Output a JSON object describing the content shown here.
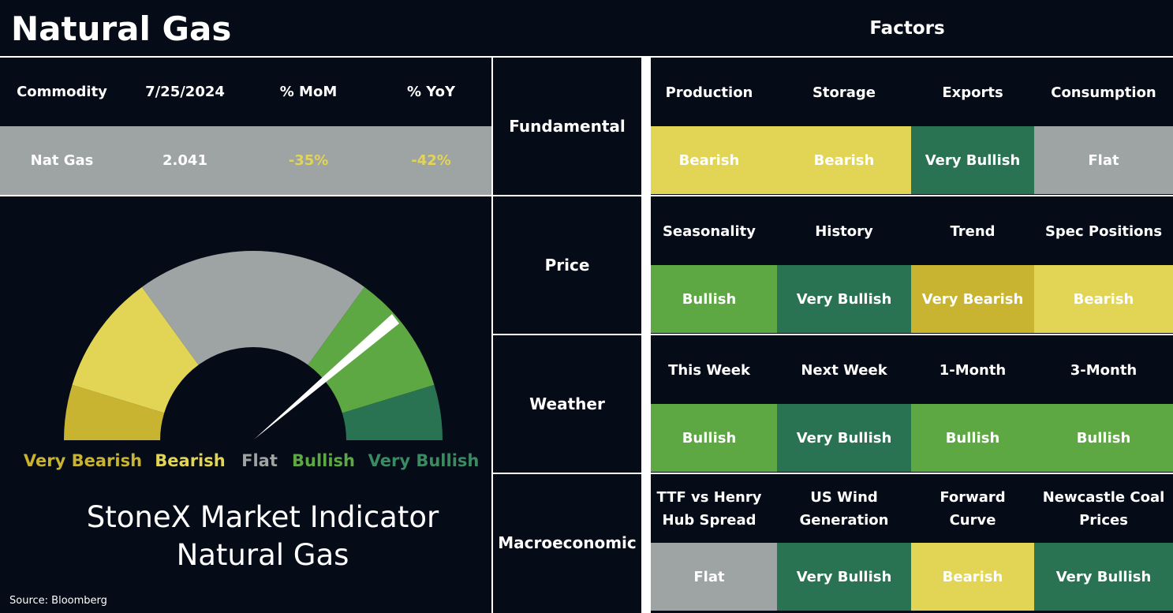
{
  "header": {
    "title": "Natural Gas",
    "factors_label": "Factors"
  },
  "table": {
    "columns": [
      "Commodity",
      "7/25/2024",
      "% MoM",
      "% YoY"
    ],
    "rows": [
      [
        "Nat Gas",
        "2.041",
        "-35%",
        "-42%"
      ]
    ]
  },
  "gauge": {
    "scale": [
      {
        "label": "Very Bearish",
        "color": "#c9b431"
      },
      {
        "label": "Bearish",
        "color": "#e2d555"
      },
      {
        "label": "Flat",
        "color": "#9ea3a3"
      },
      {
        "label": "Bullish",
        "color": "#5ea843"
      },
      {
        "label": "Very Bullish",
        "color": "#2a7352"
      }
    ],
    "caption": [
      "StoneX Market Indicator",
      "Natural Gas"
    ]
  },
  "source": "Source: Bloomberg",
  "factors": [
    {
      "category": "Fundamental",
      "items": [
        {
          "name": "Production",
          "rating": "Bearish"
        },
        {
          "name": "Storage",
          "rating": "Bearish"
        },
        {
          "name": "Exports",
          "rating": "Very Bullish"
        },
        {
          "name": "Consumption",
          "rating": "Flat"
        }
      ]
    },
    {
      "category": "Price",
      "items": [
        {
          "name": "Seasonality",
          "rating": "Bullish"
        },
        {
          "name": "History",
          "rating": "Very Bullish"
        },
        {
          "name": "Trend",
          "rating": "Very Bearish"
        },
        {
          "name": "Spec Positions",
          "rating": "Bearish"
        }
      ]
    },
    {
      "category": "Weather",
      "items": [
        {
          "name": "This Week",
          "rating": "Bullish"
        },
        {
          "name": "Next Week",
          "rating": "Very Bullish"
        },
        {
          "name": "1-Month",
          "rating": "Bullish"
        },
        {
          "name": "3-Month",
          "rating": "Bullish"
        }
      ]
    },
    {
      "category": "Macroeconomic",
      "items": [
        {
          "name": "TTF vs Henry Hub Spread",
          "rating": "Flat"
        },
        {
          "name": "US Wind Generation",
          "rating": "Very Bullish"
        },
        {
          "name": "Forward Curve",
          "rating": "Bearish"
        },
        {
          "name": "Newcastle Coal Prices",
          "rating": "Very Bullish"
        }
      ]
    }
  ]
}
